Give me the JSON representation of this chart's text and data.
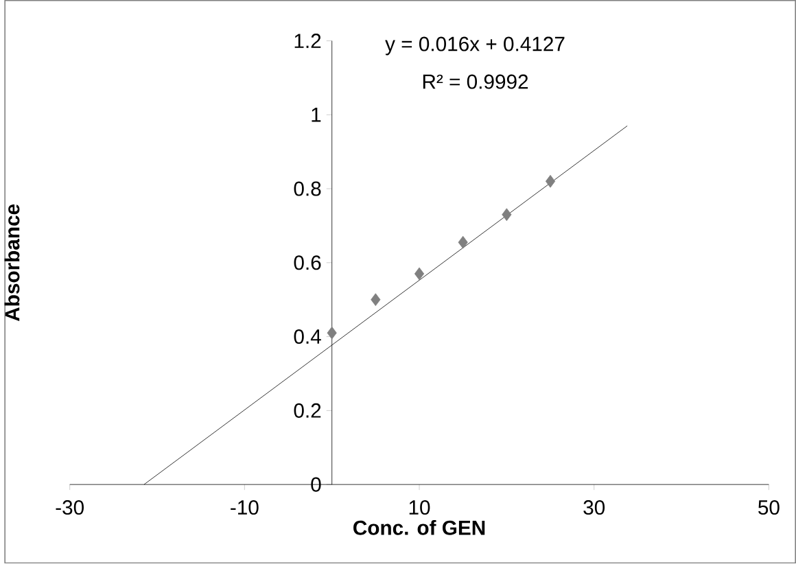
{
  "chart_data": {
    "type": "scatter",
    "xlabel": "Conc. of GEN",
    "ylabel": "Absorbance",
    "xlim": [
      -30,
      50
    ],
    "xticks": [
      -30,
      -10,
      10,
      30,
      50
    ],
    "ylim": [
      0,
      1.2
    ],
    "yticks": [
      0,
      0.2,
      0.4,
      0.6,
      0.8,
      1,
      1.2
    ],
    "grid": false,
    "annotations": [
      "y = 0.016x + 0.4127",
      "R² = 0.9992"
    ],
    "series": [
      {
        "marker": "diamond",
        "color": "#808080",
        "x": [
          0,
          5,
          10,
          15,
          20,
          25
        ],
        "values": [
          0.41,
          0.5,
          0.57,
          0.655,
          0.73,
          0.82
        ]
      },
      {
        "type": "line",
        "marker": "none",
        "color": "#000000",
        "x": [
          -21.5,
          33.8
        ],
        "values": [
          0,
          0.97
        ]
      }
    ]
  }
}
